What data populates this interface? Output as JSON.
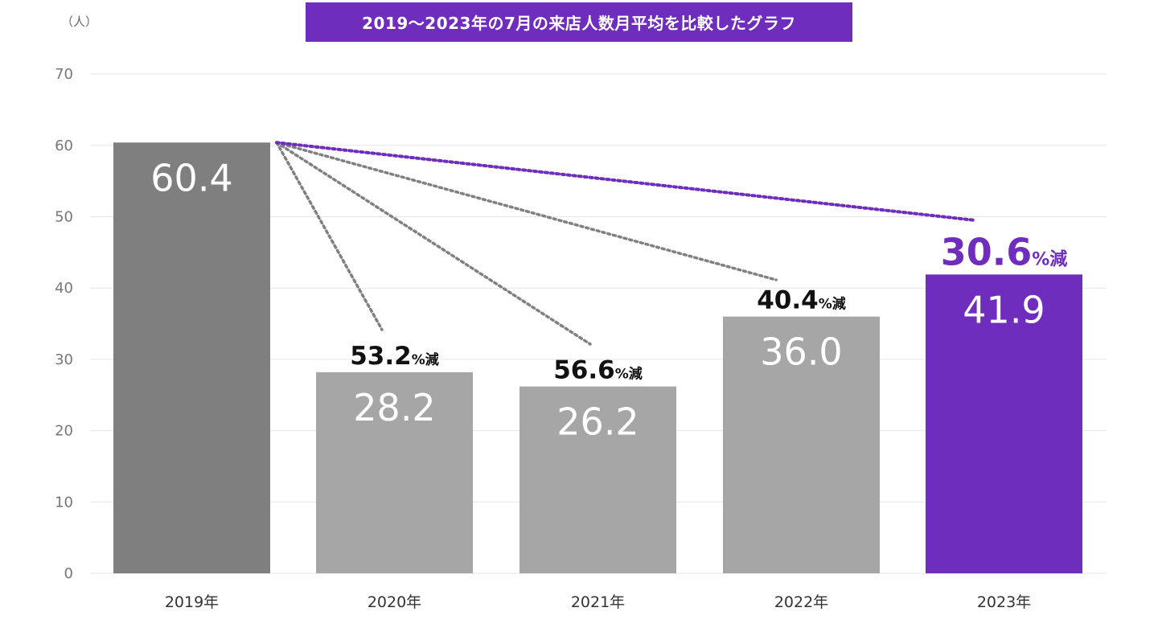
{
  "chart_data": {
    "type": "bar",
    "title": "2019～2023年の7月の来店人数月平均を比較したグラフ",
    "ylabel": "（人）",
    "ylim": [
      0,
      70
    ],
    "yticks": [
      "0",
      "10",
      "20",
      "30",
      "40",
      "50",
      "60",
      "70"
    ],
    "categories": [
      "2019年",
      "2020年",
      "2021年",
      "2022年",
      "2023年"
    ],
    "values": [
      60.4,
      28.2,
      26.2,
      36.0,
      41.9
    ],
    "value_labels": [
      "60.4",
      "28.2",
      "26.2",
      "36.0",
      "41.9"
    ],
    "reductions": [
      null,
      {
        "value": "53.2",
        "suffix": "%減"
      },
      {
        "value": "56.6",
        "suffix": "%減"
      },
      {
        "value": "40.4",
        "suffix": "%減"
      },
      {
        "value": "30.6",
        "suffix": "%減"
      }
    ],
    "colors": {
      "baseline_bar": "#7f7f7f",
      "bar": "#a6a6a6",
      "highlight_bar": "#6f2dbd",
      "grid": "#e6e6e6",
      "dotted": "#808080",
      "highlight_dotted": "#6f2dbd",
      "pct_text": "#111111",
      "highlight_pct_text": "#6f2dbd"
    }
  }
}
